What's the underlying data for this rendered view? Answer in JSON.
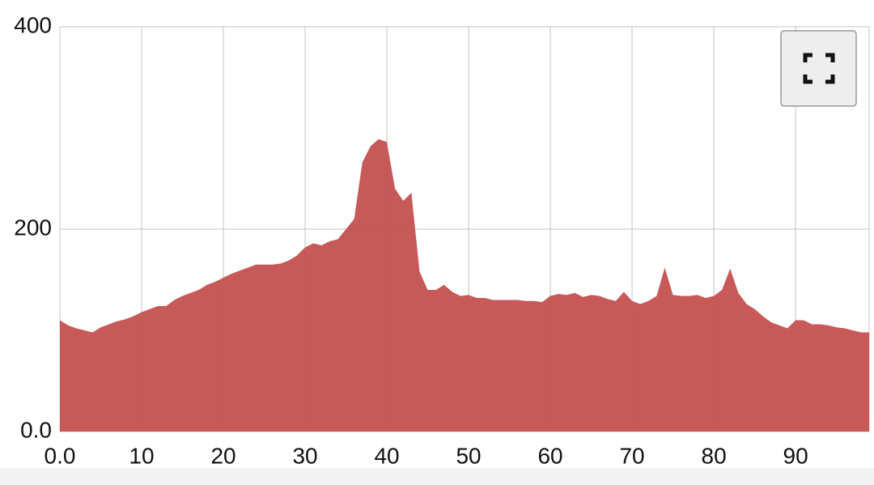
{
  "chart_data": {
    "type": "area",
    "color": "#c55553",
    "grid": true,
    "x": [
      0,
      1,
      2,
      3,
      4,
      5,
      6,
      7,
      8,
      9,
      10,
      11,
      12,
      13,
      14,
      15,
      16,
      17,
      18,
      19,
      20,
      21,
      22,
      23,
      24,
      25,
      26,
      27,
      28,
      29,
      30,
      31,
      32,
      33,
      34,
      35,
      36,
      37,
      38,
      39,
      40,
      41,
      42,
      43,
      44,
      45,
      46,
      47,
      48,
      49,
      50,
      51,
      52,
      53,
      54,
      55,
      56,
      57,
      58,
      59,
      60,
      61,
      62,
      63,
      64,
      65,
      66,
      67,
      68,
      69,
      70,
      71,
      72,
      73,
      74,
      75,
      76,
      77,
      78,
      79,
      80,
      81,
      82,
      83,
      84,
      85,
      86,
      87,
      88,
      89,
      90,
      91,
      92,
      93,
      94,
      95,
      96,
      97,
      98,
      99
    ],
    "values": [
      110,
      105,
      102,
      100,
      98,
      103,
      106,
      109,
      111,
      114,
      118,
      121,
      124,
      124,
      130,
      134,
      137,
      140,
      145,
      148,
      152,
      156,
      159,
      162,
      165,
      165,
      165,
      166,
      169,
      174,
      182,
      186,
      184,
      188,
      190,
      200,
      210,
      266,
      282,
      289,
      286,
      240,
      228,
      236,
      158,
      140,
      140,
      145,
      138,
      134,
      135,
      132,
      132,
      130,
      130,
      130,
      130,
      129,
      129,
      128,
      134,
      136,
      135,
      137,
      133,
      135,
      134,
      131,
      129,
      138,
      129,
      126,
      129,
      134,
      162,
      135,
      134,
      134,
      135,
      132,
      134,
      140,
      161,
      137,
      126,
      121,
      114,
      108,
      105,
      102,
      110,
      110,
      106,
      106,
      105,
      103,
      102,
      100,
      98,
      98
    ],
    "xlim": [
      0,
      99
    ],
    "ylim": [
      0,
      400
    ],
    "xticks": [
      {
        "value": 0,
        "label": "0.0"
      },
      10,
      20,
      30,
      40,
      50,
      60,
      70,
      80,
      90
    ],
    "yticks": [
      {
        "value": 0,
        "label": "0.0"
      },
      200,
      400
    ]
  }
}
